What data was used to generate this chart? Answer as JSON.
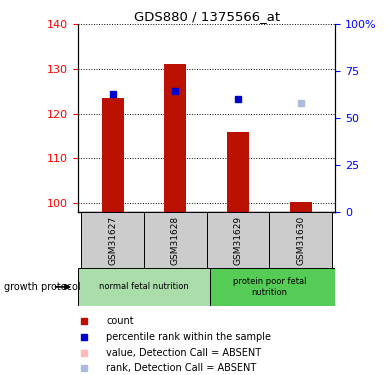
{
  "title": "GDS880 / 1375566_at",
  "samples": [
    "GSM31627",
    "GSM31628",
    "GSM31629",
    "GSM31630"
  ],
  "bar_values": [
    123.5,
    131.2,
    116.0,
    100.2
  ],
  "blue_squares": [
    124.3,
    125.0,
    123.3,
    null
  ],
  "absent_value": [
    null,
    null,
    null,
    null
  ],
  "absent_rank": [
    null,
    null,
    null,
    122.5
  ],
  "ylim_left": [
    98,
    140
  ],
  "ylim_right": [
    0,
    100
  ],
  "yticks_left": [
    100,
    110,
    120,
    130,
    140
  ],
  "yticks_right": [
    0,
    25,
    50,
    75,
    100
  ],
  "ytick_labels_right": [
    "0",
    "25",
    "50",
    "75",
    "100%"
  ],
  "bar_color": "#bb1100",
  "blue_sq_color": "#0000cc",
  "absent_val_color": "#ffbbbb",
  "absent_rank_color": "#aabbdd",
  "group1_label": "normal fetal nutrition",
  "group2_label": "protein poor fetal\nnutrition",
  "group_label_bg1": "#aaddaa",
  "group_label_bg2": "#55cc55",
  "sample_bg": "#cccccc",
  "legend_items": [
    {
      "label": "count",
      "color": "#bb1100",
      "marker": "s"
    },
    {
      "label": "percentile rank within the sample",
      "color": "#0000cc",
      "marker": "s"
    },
    {
      "label": "value, Detection Call = ABSENT",
      "color": "#ffbbbb",
      "marker": "s"
    },
    {
      "label": "rank, Detection Call = ABSENT",
      "color": "#aabbdd",
      "marker": "s"
    }
  ],
  "growth_protocol_label": "growth protocol",
  "bar_width": 0.35
}
